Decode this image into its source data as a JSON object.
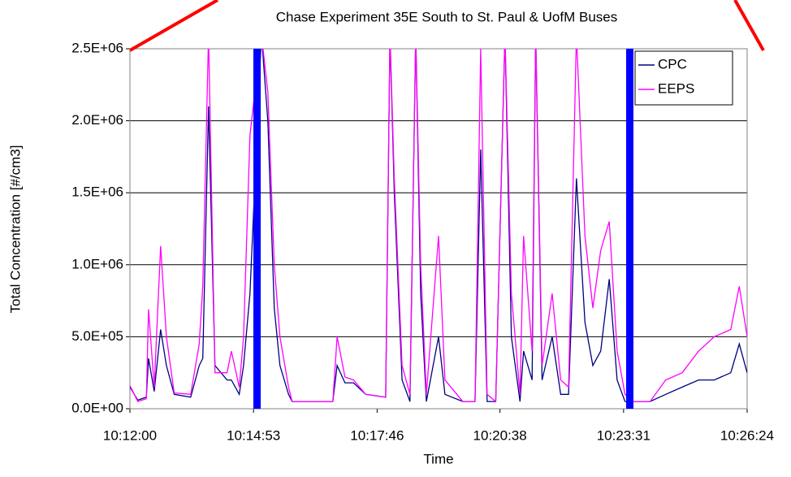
{
  "chart_data": {
    "type": "line",
    "title": "Chase Experiment 35E South to St. Paul & UofM Buses",
    "x_label": "Time",
    "y_label": "Total Concentration [#/cm3]",
    "x": [
      "10:12:00",
      "10:12:11",
      "10:12:23",
      "10:12:26",
      "10:12:34",
      "10:12:43",
      "10:12:51",
      "10:13:02",
      "10:13:25",
      "10:13:37",
      "10:13:42",
      "10:13:50",
      "10:13:59",
      "10:14:16",
      "10:14:22",
      "10:14:33",
      "10:14:39",
      "10:14:48",
      "10:15:04",
      "10:15:13",
      "10:15:22",
      "10:15:30",
      "10:15:42",
      "10:15:47",
      "10:16:44",
      "10:16:50",
      "10:17:01",
      "10:17:13",
      "10:17:30",
      "10:17:58",
      "10:18:04",
      "10:18:10",
      "10:18:21",
      "10:18:32",
      "10:18:40",
      "10:18:47",
      "10:18:55",
      "10:19:12",
      "10:19:21",
      "10:19:46",
      "10:20:03",
      "10:20:11",
      "10:20:20",
      "10:20:32",
      "10:20:45",
      "10:20:54",
      "10:21:06",
      "10:21:11",
      "10:21:23",
      "10:21:28",
      "10:21:37",
      "10:21:51",
      "10:22:03",
      "10:22:14",
      "10:22:25",
      "10:22:37",
      "10:22:48",
      "10:22:59",
      "10:23:11",
      "10:23:22",
      "10:23:33",
      "10:23:45",
      "10:24:08",
      "10:24:30",
      "10:24:53",
      "10:25:16",
      "10:25:38",
      "10:26:01",
      "10:26:13",
      "10:26:24"
    ],
    "series": [
      {
        "name": "CPC",
        "color": "#000080",
        "values": [
          150000,
          60000,
          80000,
          350000,
          120000,
          550000,
          300000,
          100000,
          80000,
          300000,
          350000,
          2100000,
          300000,
          200000,
          200000,
          100000,
          300000,
          800000,
          2600000,
          2000000,
          700000,
          300000,
          100000,
          50000,
          50000,
          300000,
          180000,
          180000,
          100000,
          80000,
          2600000,
          1500000,
          200000,
          50000,
          2600000,
          800000,
          50000,
          500000,
          100000,
          50000,
          50000,
          1800000,
          50000,
          50000,
          2600000,
          500000,
          50000,
          400000,
          200000,
          2600000,
          200000,
          500000,
          100000,
          100000,
          1600000,
          600000,
          300000,
          400000,
          900000,
          200000,
          50000,
          50000,
          50000,
          100000,
          150000,
          200000,
          200000,
          250000,
          450000,
          250000
        ]
      },
      {
        "name": "EEPS",
        "color": "#ff00ff",
        "values": [
          160000,
          50000,
          70000,
          690000,
          150000,
          1130000,
          500000,
          110000,
          100000,
          450000,
          850000,
          2600000,
          250000,
          250000,
          400000,
          150000,
          500000,
          1900000,
          2600000,
          2200000,
          1000000,
          500000,
          150000,
          50000,
          50000,
          500000,
          220000,
          200000,
          100000,
          80000,
          2600000,
          1600000,
          300000,
          100000,
          2600000,
          1000000,
          100000,
          1200000,
          200000,
          50000,
          50000,
          2500000,
          100000,
          50000,
          2600000,
          800000,
          100000,
          1200000,
          400000,
          2600000,
          300000,
          800000,
          200000,
          150000,
          2600000,
          1200000,
          700000,
          1100000,
          1300000,
          400000,
          100000,
          50000,
          50000,
          200000,
          250000,
          400000,
          500000,
          550000,
          850000,
          500000
        ]
      }
    ],
    "xlim": [
      "10:12:00",
      "10:26:24"
    ],
    "xticks": [
      "10:12:00",
      "10:14:53",
      "10:17:46",
      "10:20:38",
      "10:23:31",
      "10:26:24"
    ],
    "ylim": [
      0,
      2500000
    ],
    "yticks": [
      {
        "value": 0,
        "label": "0.0E+00"
      },
      {
        "value": 500000,
        "label": "5.0E+05"
      },
      {
        "value": 1000000,
        "label": "1.0E+06"
      },
      {
        "value": 1500000,
        "label": "1.5E+06"
      },
      {
        "value": 2000000,
        "label": "2.0E+06"
      },
      {
        "value": 2500000,
        "label": "2.5E+06"
      }
    ],
    "grid": true,
    "legend": "top-right"
  }
}
